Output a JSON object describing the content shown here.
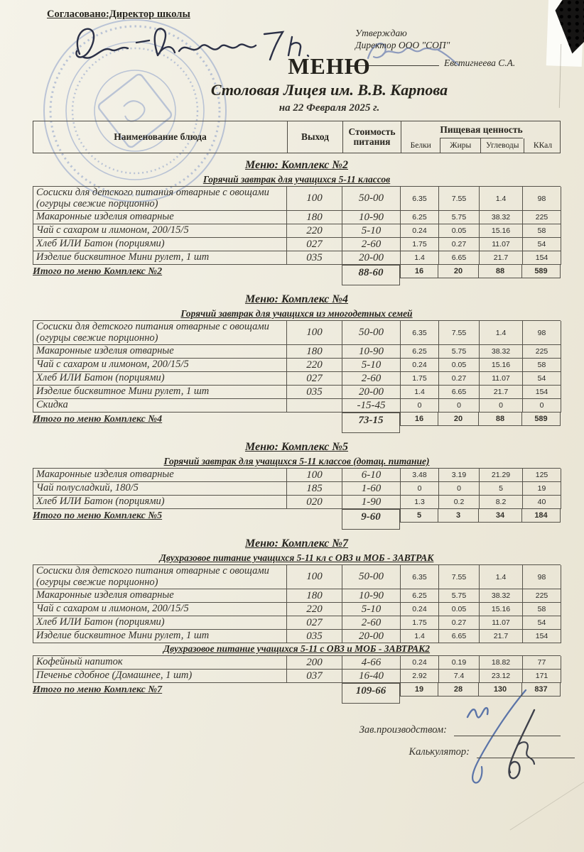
{
  "page": {
    "approved_line": "Согласовано:Директор школы",
    "approval_right": {
      "line1": "Утверждаю",
      "line2": "Директор ООО \"СОП\"",
      "signer_name": "Евстигнеева С.А."
    },
    "title": "МЕНЮ",
    "subtitle": "Столовая Лицея им. В.В. Карпова",
    "date_line": "на 22 Февраля 2025 г."
  },
  "table_header": {
    "dish": "Наименование блюда",
    "output": "Выход",
    "cost_line1": "Стоимость",
    "cost_line2": "питания",
    "nutrition": "Пищевая ценность",
    "protein": "Белки",
    "fat": "Жиры",
    "carbs": "Углеводы",
    "kcal": "ККал"
  },
  "sections": [
    {
      "title": "Меню: Комплекс №2",
      "groups": [
        {
          "subtitle": "Горячий завтрак для учащихся 5-11 классов",
          "rows": [
            {
              "name": "Сосиски для детского питания отварные с овощами (огурцы свежие порционно)",
              "out": "100",
              "cost": "50-00",
              "protein": "6.35",
              "fat": "7.55",
              "carbs": "1.4",
              "kcal": "98"
            },
            {
              "name": "Макаронные изделия отварные",
              "out": "180",
              "cost": "10-90",
              "protein": "6.25",
              "fat": "5.75",
              "carbs": "38.32",
              "kcal": "225"
            },
            {
              "name": "Чай с сахаром и лимоном, 200/15/5",
              "out": "220",
              "cost": "5-10",
              "protein": "0.24",
              "fat": "0.05",
              "carbs": "15.16",
              "kcal": "58"
            },
            {
              "name": "Хлеб ИЛИ Батон (порциями)",
              "out": "027",
              "cost": "2-60",
              "protein": "1.75",
              "fat": "0.27",
              "carbs": "11.07",
              "kcal": "54"
            },
            {
              "name": "Изделие бисквитное Мини рулет, 1 шт",
              "out": "035",
              "cost": "20-00",
              "protein": "1.4",
              "fat": "6.65",
              "carbs": "21.7",
              "kcal": "154"
            }
          ]
        }
      ],
      "total": {
        "label": "Итого по меню Комплекс №2",
        "cost": "88-60",
        "protein": "16",
        "fat": "20",
        "carbs": "88",
        "kcal": "589"
      }
    },
    {
      "title": "Меню: Комплекс №4",
      "groups": [
        {
          "subtitle": "Горячий завтрак для учащихся из многодетных семей",
          "rows": [
            {
              "name": "Сосиски для детского питания отварные с овощами (огурцы свежие порционно)",
              "out": "100",
              "cost": "50-00",
              "protein": "6.35",
              "fat": "7.55",
              "carbs": "1.4",
              "kcal": "98"
            },
            {
              "name": "Макаронные изделия отварные",
              "out": "180",
              "cost": "10-90",
              "protein": "6.25",
              "fat": "5.75",
              "carbs": "38.32",
              "kcal": "225"
            },
            {
              "name": "Чай с сахаром и лимоном, 200/15/5",
              "out": "220",
              "cost": "5-10",
              "protein": "0.24",
              "fat": "0.05",
              "carbs": "15.16",
              "kcal": "58"
            },
            {
              "name": "Хлеб ИЛИ Батон (порциями)",
              "out": "027",
              "cost": "2-60",
              "protein": "1.75",
              "fat": "0.27",
              "carbs": "11.07",
              "kcal": "54"
            },
            {
              "name": "Изделие бисквитное Мини рулет, 1 шт",
              "out": "035",
              "cost": "20-00",
              "protein": "1.4",
              "fat": "6.65",
              "carbs": "21.7",
              "kcal": "154"
            },
            {
              "name": "Скидка",
              "out": "",
              "cost": "-15-45",
              "protein": "0",
              "fat": "0",
              "carbs": "0",
              "kcal": "0"
            }
          ]
        }
      ],
      "total": {
        "label": "Итого по меню Комплекс №4",
        "cost": "73-15",
        "protein": "16",
        "fat": "20",
        "carbs": "88",
        "kcal": "589"
      }
    },
    {
      "title": "Меню: Комплекс №5",
      "groups": [
        {
          "subtitle": "Горячий завтрак для учащихся 5-11 классов (дотац. питание)",
          "rows": [
            {
              "name": "Макаронные изделия отварные",
              "out": "100",
              "cost": "6-10",
              "protein": "3.48",
              "fat": "3.19",
              "carbs": "21.29",
              "kcal": "125"
            },
            {
              "name": "Чай полусладкий, 180/5",
              "out": "185",
              "cost": "1-60",
              "protein": "0",
              "fat": "0",
              "carbs": "5",
              "kcal": "19"
            },
            {
              "name": "Хлеб ИЛИ Батон (порциями)",
              "out": "020",
              "cost": "1-90",
              "protein": "1.3",
              "fat": "0.2",
              "carbs": "8.2",
              "kcal": "40"
            }
          ]
        }
      ],
      "total": {
        "label": "Итого по меню Комплекс №5",
        "cost": "9-60",
        "protein": "5",
        "fat": "3",
        "carbs": "34",
        "kcal": "184"
      }
    },
    {
      "title": "Меню: Комплекс №7",
      "groups": [
        {
          "subtitle": "Двухразовое питание учащихся 5-11 кл с ОВЗ и МОБ - ЗАВТРАК",
          "rows": [
            {
              "name": "Сосиски для детского питания отварные с овощами (огурцы свежие порционно)",
              "out": "100",
              "cost": "50-00",
              "protein": "6.35",
              "fat": "7.55",
              "carbs": "1.4",
              "kcal": "98"
            },
            {
              "name": "Макаронные изделия отварные",
              "out": "180",
              "cost": "10-90",
              "protein": "6.25",
              "fat": "5.75",
              "carbs": "38.32",
              "kcal": "225"
            },
            {
              "name": "Чай с сахаром и лимоном, 200/15/5",
              "out": "220",
              "cost": "5-10",
              "protein": "0.24",
              "fat": "0.05",
              "carbs": "15.16",
              "kcal": "58"
            },
            {
              "name": "Хлеб ИЛИ Батон (порциями)",
              "out": "027",
              "cost": "2-60",
              "protein": "1.75",
              "fat": "0.27",
              "carbs": "11.07",
              "kcal": "54"
            },
            {
              "name": "Изделие бисквитное Мини рулет, 1 шт",
              "out": "035",
              "cost": "20-00",
              "protein": "1.4",
              "fat": "6.65",
              "carbs": "21.7",
              "kcal": "154"
            }
          ]
        },
        {
          "subtitle": "Двухразовое питание учащихся 5-11 с ОВЗ и МОБ - ЗАВТРАК2",
          "rows": [
            {
              "name": "Кофейный напиток",
              "out": "200",
              "cost": "4-66",
              "protein": "0.24",
              "fat": "0.19",
              "carbs": "18.82",
              "kcal": "77"
            },
            {
              "name": "Печенье сдобное (Домашнее, 1 шт)",
              "out": "037",
              "cost": "16-40",
              "protein": "2.92",
              "fat": "7.4",
              "carbs": "23.12",
              "kcal": "171"
            }
          ]
        }
      ],
      "total": {
        "label": "Итого по меню Комплекс №7",
        "cost": "109-66",
        "protein": "19",
        "fat": "28",
        "carbs": "130",
        "kcal": "837"
      }
    }
  ],
  "footer": {
    "production_label": "Зав.производством:",
    "calculator_label": "Калькулятор:"
  },
  "colors": {
    "paper": "#efecdf",
    "stamp_blue": "#6d87c1",
    "ink_dark": "#2b3046",
    "ink_blue": "#5b74a8"
  }
}
